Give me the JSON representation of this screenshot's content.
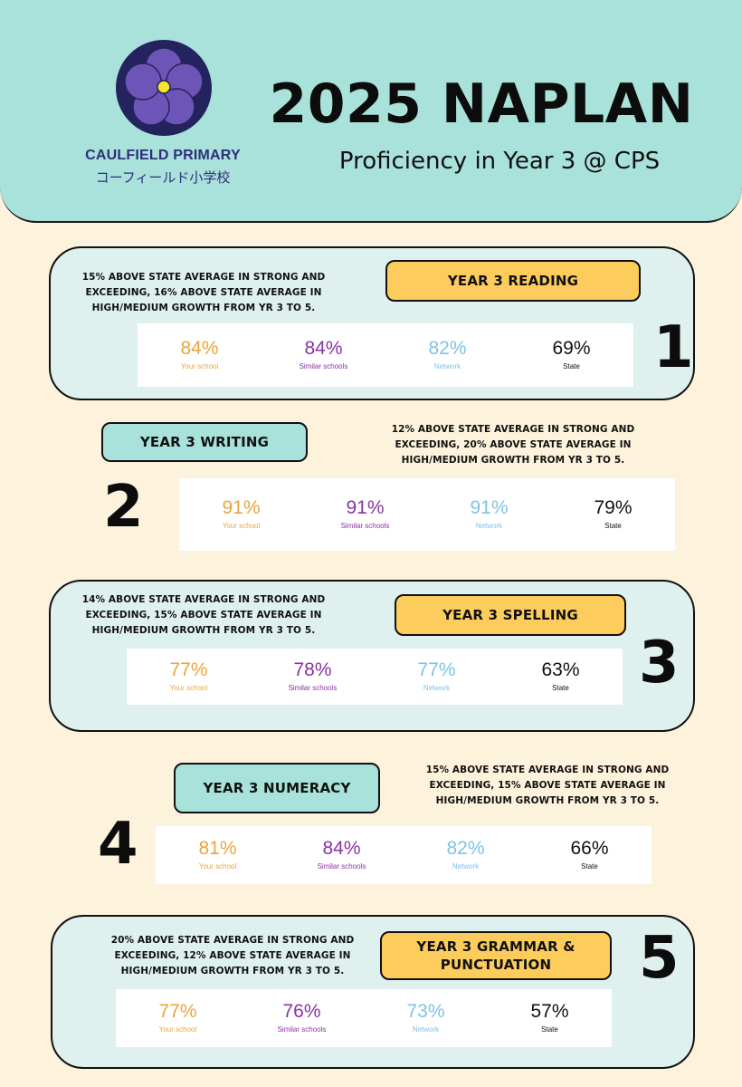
{
  "header": {
    "title": "2025 NAPLAN",
    "subtitle": "Proficiency in Year 3 @ CPS",
    "school_name": "CAULFIELD PRIMARY",
    "school_name_jp": "コーフィールド小学校",
    "logo_icon": "violet-flower-icon",
    "colors": {
      "header_bg": "#a8e2da",
      "page_bg": "#fdf3dc",
      "logo_bg": "#24235e",
      "petal": "#6d55b7",
      "center": "#f6e52b"
    }
  },
  "colors": {
    "your_school": "#eba33c",
    "similar_schools": "#8a32a6",
    "network": "#7dc3e6",
    "state": "#111111",
    "label_yellow": "#fccc5c",
    "label_teal": "#a8e2da",
    "card_bg": "#dff1ee"
  },
  "stat_labels": [
    "Your school",
    "Similar schools",
    "Network",
    "State"
  ],
  "sections": [
    {
      "number": "1",
      "title": "YEAR 3 READING",
      "description": [
        "15% ABOVE STATE AVERAGE IN STRONG AND",
        "EXCEEDING, 16% ABOVE STATE AVERAGE IN",
        "HIGH/MEDIUM GROWTH FROM YR 3 TO 5."
      ],
      "values": [
        "84%",
        "84%",
        "82%",
        "69%"
      ]
    },
    {
      "number": "2",
      "title": "YEAR 3 WRITING",
      "description": [
        "12% ABOVE STATE AVERAGE IN STRONG AND",
        "EXCEEDING, 20% ABOVE STATE AVERAGE IN",
        "HIGH/MEDIUM GROWTH FROM YR 3 TO 5."
      ],
      "values": [
        "91%",
        "91%",
        "91%",
        "79%"
      ]
    },
    {
      "number": "3",
      "title": "YEAR 3 SPELLING",
      "description": [
        "14% ABOVE STATE AVERAGE IN STRONG AND",
        "EXCEEDING, 15% ABOVE STATE AVERAGE IN",
        "HIGH/MEDIUM GROWTH FROM YR 3 TO 5."
      ],
      "values": [
        "77%",
        "78%",
        "77%",
        "63%"
      ]
    },
    {
      "number": "4",
      "title": "YEAR 3 NUMERACY",
      "description": [
        "15% ABOVE STATE AVERAGE IN STRONG AND",
        "EXCEEDING, 15% ABOVE STATE AVERAGE IN",
        "HIGH/MEDIUM GROWTH FROM YR 3 TO 5."
      ],
      "values": [
        "81%",
        "84%",
        "82%",
        "66%"
      ]
    },
    {
      "number": "5",
      "title_lines": [
        "YEAR 3 GRAMMAR &",
        "PUNCTUATION"
      ],
      "description": [
        "20% ABOVE STATE AVERAGE IN STRONG AND",
        "EXCEEDING, 12% ABOVE STATE AVERAGE IN",
        "HIGH/MEDIUM GROWTH FROM YR 3 TO 5."
      ],
      "values": [
        "77%",
        "76%",
        "73%",
        "57%"
      ]
    }
  ]
}
